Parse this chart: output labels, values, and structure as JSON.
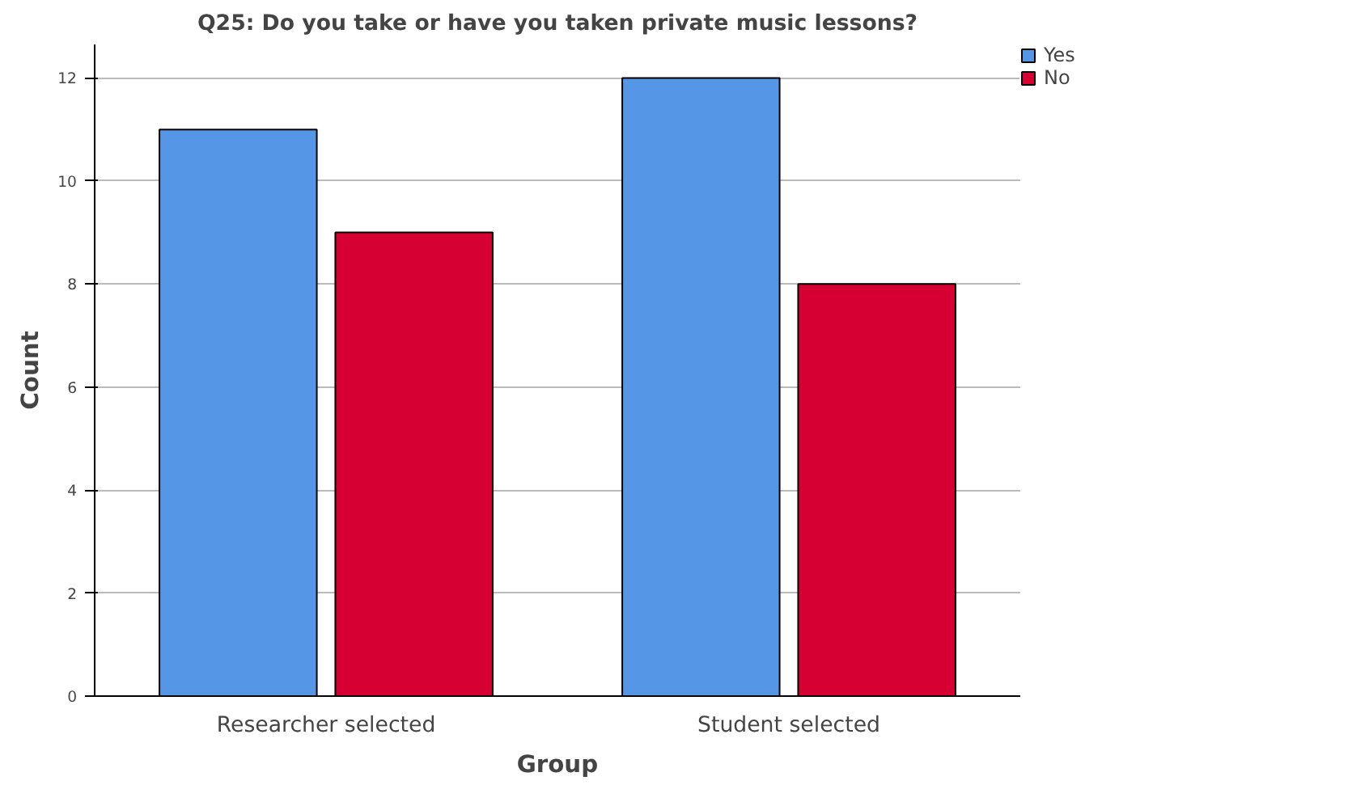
{
  "chart_data": {
    "type": "bar",
    "title": "Q25: Do you take or have you taken private music lessons?",
    "xlabel": "Group",
    "ylabel": "Count",
    "categories": [
      "Researcher selected",
      "Student selected"
    ],
    "series": [
      {
        "name": "Yes",
        "color": "#5596e6",
        "values": [
          11,
          12
        ]
      },
      {
        "name": "No",
        "color": "#d60032",
        "values": [
          9,
          8
        ]
      }
    ],
    "ylim": [
      0,
      12.65
    ],
    "yticks": [
      0,
      2,
      4,
      6,
      8,
      10,
      12
    ],
    "grid": "y",
    "legend": "top right"
  }
}
